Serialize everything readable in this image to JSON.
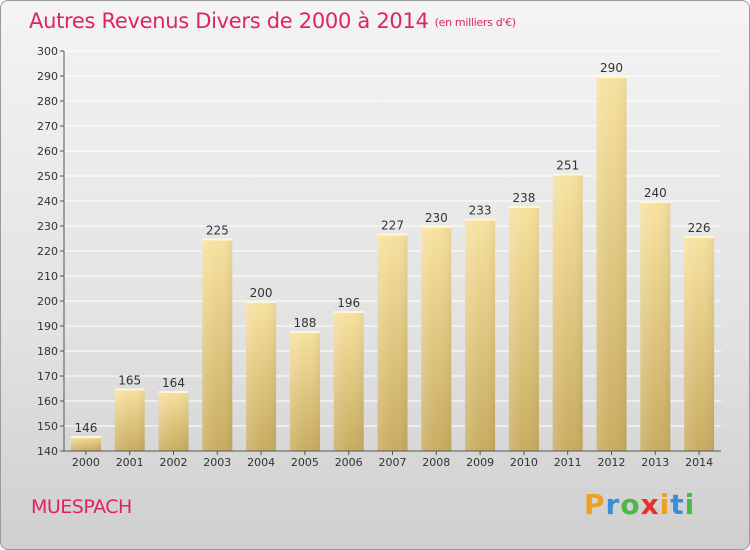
{
  "header": {
    "title": "Autres Revenus Divers de 2000 à 2014",
    "subtitle": "(en milliers d'€)"
  },
  "location": "MUESPACH",
  "logo": {
    "letters": [
      "P",
      "r",
      "o",
      "x",
      "i",
      "t",
      "i"
    ],
    "colors": [
      "#f0a020",
      "#3a8fd8",
      "#4cb848",
      "#e8302a",
      "#f0a020",
      "#3a8fd8",
      "#4cb848"
    ]
  },
  "chart_data": {
    "type": "bar",
    "title": "Autres Revenus Divers de 2000 à 2014",
    "subtitle": "(en milliers d'€)",
    "categories": [
      "2000",
      "2001",
      "2002",
      "2003",
      "2004",
      "2005",
      "2006",
      "2007",
      "2008",
      "2009",
      "2010",
      "2011",
      "2012",
      "2013",
      "2014"
    ],
    "values": [
      146,
      165,
      164,
      225,
      200,
      188,
      196,
      227,
      230,
      233,
      238,
      251,
      290,
      240,
      226
    ],
    "ylim": [
      140,
      300
    ],
    "yticks": [
      140,
      150,
      160,
      170,
      180,
      190,
      200,
      210,
      220,
      230,
      240,
      250,
      260,
      270,
      280,
      290,
      300
    ],
    "grid": true,
    "colors": {
      "bar_top": "#f8e2a0",
      "bar_bottom": "#c8ac60",
      "grid": "#ffffff",
      "axis": "#555555"
    }
  }
}
